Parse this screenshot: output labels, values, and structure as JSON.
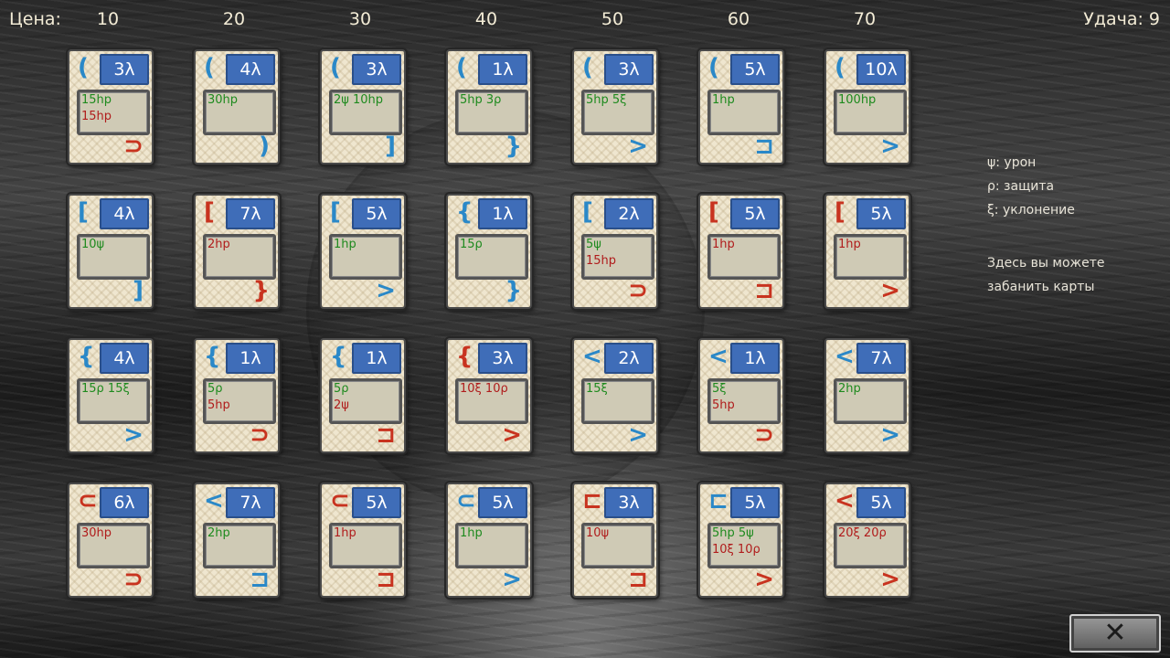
{
  "header": {
    "price_label": "Цена:",
    "prices": [
      "10",
      "20",
      "30",
      "40",
      "50",
      "60",
      "70"
    ],
    "luck_label": "Удача:",
    "luck_value": "9"
  },
  "legend": {
    "damage": "ψ: урон",
    "defense": "ρ: защита",
    "evasion": "ξ: уклонение",
    "ban_line1": "Здесь вы можете",
    "ban_line2": "забанить карты"
  },
  "colors": {
    "cost_bg": "#3f6db8",
    "good": "#1e8a1e",
    "bad": "#b01c1c",
    "blue_symbol": "#2a88c8",
    "red_symbol": "#c8331f"
  },
  "close_button": {
    "label": "✕",
    "icon": "close-icon"
  },
  "cards": [
    [
      {
        "cost": "3λ",
        "tl": "(",
        "tlc": "blue",
        "br": "⊃",
        "brc": "red",
        "l1": "15hp",
        "l1c": "good",
        "l2": "15hp",
        "l2c": "bad"
      },
      {
        "cost": "4λ",
        "tl": "(",
        "tlc": "blue",
        "br": ")",
        "brc": "blue",
        "l1": "30hp",
        "l1c": "good",
        "l2": "",
        "l2c": "good"
      },
      {
        "cost": "3λ",
        "tl": "(",
        "tlc": "blue",
        "br": "]",
        "brc": "blue",
        "l1": "2ψ 10hp",
        "l1c": "good",
        "l2": "",
        "l2c": "good"
      },
      {
        "cost": "1λ",
        "tl": "(",
        "tlc": "blue",
        "br": "}",
        "brc": "blue",
        "l1": "5hp 3ρ",
        "l1c": "good",
        "l2": "",
        "l2c": "good"
      },
      {
        "cost": "3λ",
        "tl": "(",
        "tlc": "blue",
        "br": ">",
        "brc": "blue",
        "l1": "5hp 5ξ",
        "l1c": "good",
        "l2": "",
        "l2c": "good"
      },
      {
        "cost": "5λ",
        "tl": "(",
        "tlc": "blue",
        "br": "⊐",
        "brc": "blue",
        "l1": "1hp",
        "l1c": "good",
        "l2": "",
        "l2c": "good"
      },
      {
        "cost": "10λ",
        "tl": "(",
        "tlc": "blue",
        "br": ">",
        "brc": "blue",
        "l1": "100hp",
        "l1c": "good",
        "l2": "",
        "l2c": "good"
      }
    ],
    [
      {
        "cost": "4λ",
        "tl": "[",
        "tlc": "blue",
        "br": "]",
        "brc": "blue",
        "l1": "10ψ",
        "l1c": "good",
        "l2": "",
        "l2c": "good"
      },
      {
        "cost": "7λ",
        "tl": "[",
        "tlc": "red",
        "br": "}",
        "brc": "red",
        "l1": "2hp",
        "l1c": "bad",
        "l2": "",
        "l2c": "bad"
      },
      {
        "cost": "5λ",
        "tl": "[",
        "tlc": "blue",
        "br": ">",
        "brc": "blue",
        "l1": "1hp",
        "l1c": "good",
        "l2": "",
        "l2c": "good"
      },
      {
        "cost": "1λ",
        "tl": "{",
        "tlc": "blue",
        "br": "}",
        "brc": "blue",
        "l1": "15ρ",
        "l1c": "good",
        "l2": "",
        "l2c": "good"
      },
      {
        "cost": "2λ",
        "tl": "[",
        "tlc": "blue",
        "br": "⊃",
        "brc": "red",
        "l1": "5ψ",
        "l1c": "good",
        "l2": "15hp",
        "l2c": "bad"
      },
      {
        "cost": "5λ",
        "tl": "[",
        "tlc": "red",
        "br": "⊐",
        "brc": "red",
        "l1": "1hp",
        "l1c": "bad",
        "l2": "",
        "l2c": "bad"
      },
      {
        "cost": "5λ",
        "tl": "[",
        "tlc": "red",
        "br": ">",
        "brc": "red",
        "l1": "1hp",
        "l1c": "bad",
        "l2": "",
        "l2c": "bad"
      }
    ],
    [
      {
        "cost": "4λ",
        "tl": "{",
        "tlc": "blue",
        "br": ">",
        "brc": "blue",
        "l1": "15ρ 15ξ",
        "l1c": "good",
        "l2": "",
        "l2c": "good"
      },
      {
        "cost": "1λ",
        "tl": "{",
        "tlc": "blue",
        "br": "⊃",
        "brc": "red",
        "l1": "5ρ",
        "l1c": "good",
        "l2": "5hp",
        "l2c": "bad"
      },
      {
        "cost": "1λ",
        "tl": "{",
        "tlc": "blue",
        "br": "⊐",
        "brc": "red",
        "l1": "5ρ",
        "l1c": "good",
        "l2": "2ψ",
        "l2c": "bad"
      },
      {
        "cost": "3λ",
        "tl": "{",
        "tlc": "red",
        "br": ">",
        "brc": "red",
        "l1": "10ξ 10ρ",
        "l1c": "bad",
        "l2": "",
        "l2c": "bad"
      },
      {
        "cost": "2λ",
        "tl": "<",
        "tlc": "blue",
        "br": ">",
        "brc": "blue",
        "l1": "15ξ",
        "l1c": "good",
        "l2": "",
        "l2c": "good"
      },
      {
        "cost": "1λ",
        "tl": "<",
        "tlc": "blue",
        "br": "⊃",
        "brc": "red",
        "l1": "5ξ",
        "l1c": "good",
        "l2": "5hp",
        "l2c": "bad"
      },
      {
        "cost": "7λ",
        "tl": "<",
        "tlc": "blue",
        "br": ">",
        "brc": "blue",
        "l1": "2hp",
        "l1c": "good",
        "l2": "",
        "l2c": "good"
      }
    ],
    [
      {
        "cost": "6λ",
        "tl": "⊂",
        "tlc": "red",
        "br": "⊃",
        "brc": "red",
        "l1": "30hp",
        "l1c": "bad",
        "l2": "",
        "l2c": "bad"
      },
      {
        "cost": "7λ",
        "tl": "<",
        "tlc": "blue",
        "br": "⊐",
        "brc": "blue",
        "l1": "2hp",
        "l1c": "good",
        "l2": "",
        "l2c": "good"
      },
      {
        "cost": "5λ",
        "tl": "⊂",
        "tlc": "red",
        "br": "⊐",
        "brc": "red",
        "l1": "1hp",
        "l1c": "bad",
        "l2": "",
        "l2c": "bad"
      },
      {
        "cost": "5λ",
        "tl": "⊂",
        "tlc": "blue",
        "br": ">",
        "brc": "blue",
        "l1": "1hp",
        "l1c": "good",
        "l2": "",
        "l2c": "good"
      },
      {
        "cost": "3λ",
        "tl": "⊏",
        "tlc": "red",
        "br": "⊐",
        "brc": "red",
        "l1": "10ψ",
        "l1c": "bad",
        "l2": "",
        "l2c": "bad"
      },
      {
        "cost": "5λ",
        "tl": "⊏",
        "tlc": "blue",
        "br": ">",
        "brc": "red",
        "l1": "5hp 5ψ",
        "l1c": "good",
        "l2": "10ξ 10ρ",
        "l2c": "bad"
      },
      {
        "cost": "5λ",
        "tl": "<",
        "tlc": "red",
        "br": ">",
        "brc": "red",
        "l1": "20ξ 20ρ",
        "l1c": "bad",
        "l2": "",
        "l2c": "bad"
      }
    ]
  ]
}
